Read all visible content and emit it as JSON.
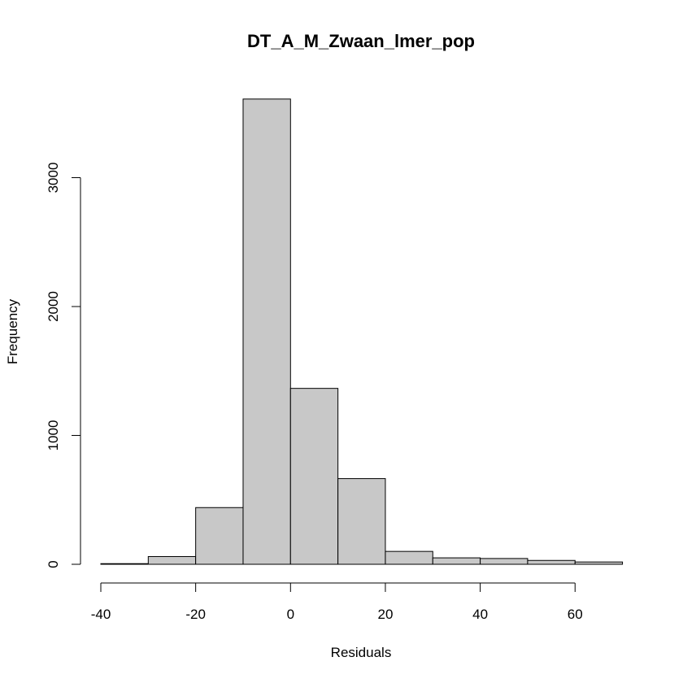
{
  "chart_data": {
    "type": "bar",
    "title": "DT_A_M_Zwaan_lmer_pop",
    "xlabel": "Residuals",
    "ylabel": "Frequency",
    "bins": [
      {
        "x0": -40,
        "x1": -30,
        "count": 5
      },
      {
        "x0": -30,
        "x1": -20,
        "count": 60
      },
      {
        "x0": -20,
        "x1": -10,
        "count": 440
      },
      {
        "x0": -10,
        "x1": 0,
        "count": 3610
      },
      {
        "x0": 0,
        "x1": 10,
        "count": 1365
      },
      {
        "x0": 10,
        "x1": 20,
        "count": 665
      },
      {
        "x0": 20,
        "x1": 30,
        "count": 100
      },
      {
        "x0": 30,
        "x1": 40,
        "count": 50
      },
      {
        "x0": 40,
        "x1": 50,
        "count": 45
      },
      {
        "x0": 50,
        "x1": 60,
        "count": 30
      },
      {
        "x0": 60,
        "x1": 70,
        "count": 18
      }
    ],
    "xticks": [
      -40,
      -20,
      0,
      20,
      40,
      60
    ],
    "yticks": [
      0,
      1000,
      2000,
      3000
    ],
    "xlim": [
      -40,
      70
    ],
    "ylim": [
      0,
      3610
    ],
    "grid": false,
    "legend": "none",
    "bar_color": "#c8c8c8"
  }
}
